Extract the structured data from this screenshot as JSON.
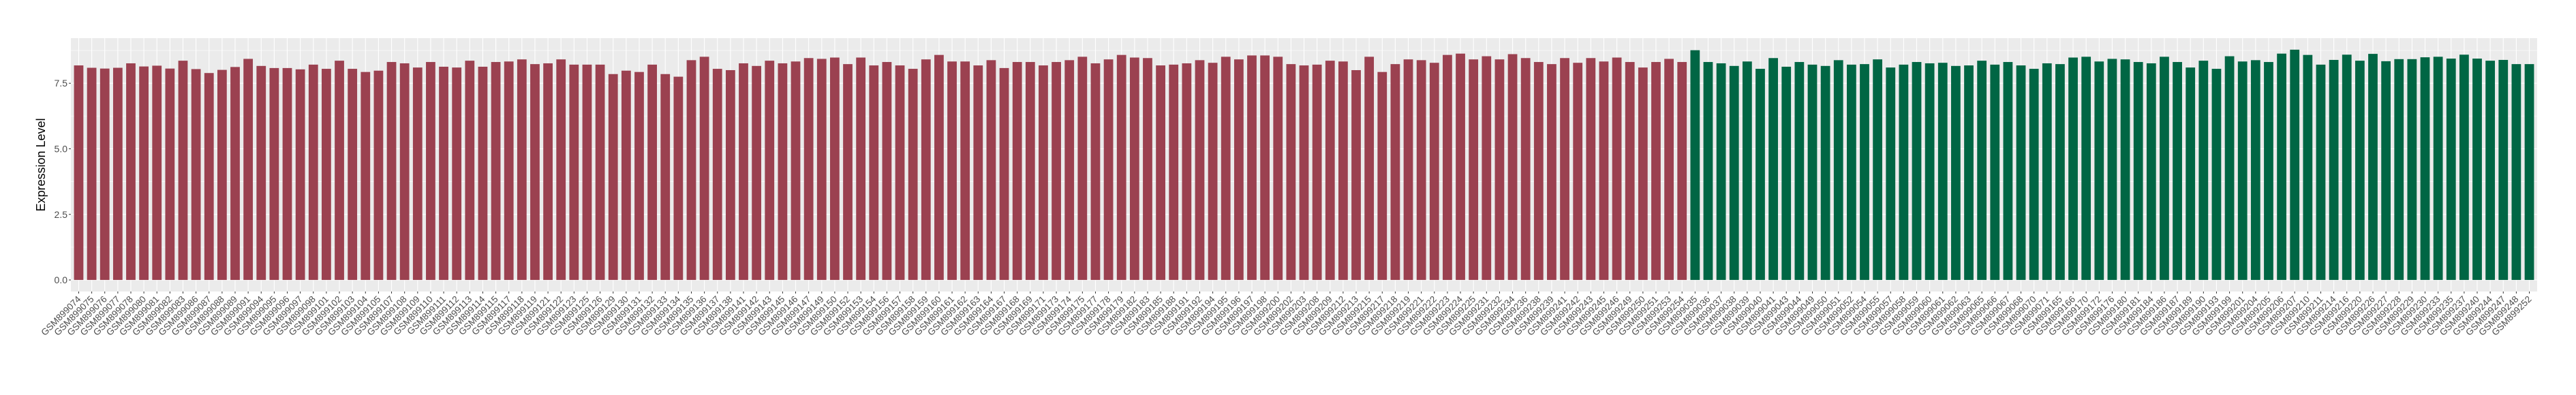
{
  "chart_data": {
    "type": "bar",
    "title": "",
    "xlabel": "",
    "ylabel": "Expression Level",
    "ylim": [
      -0.44,
      9.22
    ],
    "yticks": [
      "0.0",
      "2.5",
      "5.0",
      "7.5"
    ],
    "ytick_values": [
      0,
      2.5,
      5,
      7.5
    ],
    "grid": true,
    "legend": "none",
    "background_color": "#EBEBEB",
    "series": [
      {
        "color": "#9B4150",
        "categories": [
          "GSM899074",
          "GSM899075",
          "GSM899076",
          "GSM899077",
          "GSM899078",
          "GSM899080",
          "GSM899081",
          "GSM899082",
          "GSM899083",
          "GSM899086",
          "GSM899087",
          "GSM899088",
          "GSM899089",
          "GSM899091",
          "GSM899094",
          "GSM899095",
          "GSM899096",
          "GSM899097",
          "GSM899098",
          "GSM899101",
          "GSM899102",
          "GSM899103",
          "GSM899104",
          "GSM899105",
          "GSM899107",
          "GSM899108",
          "GSM899109",
          "GSM899110",
          "GSM899111",
          "GSM899112",
          "GSM899113",
          "GSM899114",
          "GSM899115",
          "GSM899117",
          "GSM899118",
          "GSM899119",
          "GSM899121",
          "GSM899122",
          "GSM899123",
          "GSM899125",
          "GSM899126",
          "GSM899129",
          "GSM899130",
          "GSM899131",
          "GSM899132",
          "GSM899133",
          "GSM899134",
          "GSM899135",
          "GSM899136",
          "GSM899137",
          "GSM899138",
          "GSM899141",
          "GSM899142",
          "GSM899143",
          "GSM899145",
          "GSM899146",
          "GSM899147",
          "GSM899149",
          "GSM899150",
          "GSM899152",
          "GSM899153",
          "GSM899154",
          "GSM899156",
          "GSM899157",
          "GSM899158",
          "GSM899159",
          "GSM899160",
          "GSM899161",
          "GSM899162",
          "GSM899163",
          "GSM899164",
          "GSM899167",
          "GSM899168",
          "GSM899169",
          "GSM899171",
          "GSM899173",
          "GSM899174",
          "GSM899175",
          "GSM899177",
          "GSM899178",
          "GSM899179",
          "GSM899182",
          "GSM899183",
          "GSM899185",
          "GSM899188",
          "GSM899191",
          "GSM899192",
          "GSM899194",
          "GSM899195",
          "GSM899196",
          "GSM899197",
          "GSM899198",
          "GSM899200",
          "GSM899202",
          "GSM899203",
          "GSM899208",
          "GSM899209",
          "GSM899212",
          "GSM899213",
          "GSM899215",
          "GSM899217",
          "GSM899218",
          "GSM899219",
          "GSM899221",
          "GSM899222",
          "GSM899223",
          "GSM899224",
          "GSM899225",
          "GSM899231",
          "GSM899232",
          "GSM899234",
          "GSM899236",
          "GSM899238",
          "GSM899239",
          "GSM899241",
          "GSM899242",
          "GSM899243",
          "GSM899245",
          "GSM899246",
          "GSM899249",
          "GSM899250",
          "GSM899251",
          "GSM899253",
          "GSM899254"
        ],
        "values": [
          8.18,
          8.09,
          8.06,
          8.09,
          8.26,
          8.14,
          8.17,
          8.06,
          8.36,
          8.04,
          7.89,
          8.01,
          8.12,
          8.43,
          8.16,
          8.08,
          8.08,
          8.03,
          8.21,
          8.05,
          8.36,
          8.05,
          7.93,
          7.98,
          8.31,
          8.26,
          8.1,
          8.31,
          8.13,
          8.1,
          8.36,
          8.13,
          8.31,
          8.33,
          8.41,
          8.23,
          8.26,
          8.41,
          8.21,
          8.21,
          8.21,
          7.85,
          7.98,
          7.93,
          8.21,
          7.85,
          7.75,
          8.38,
          8.51,
          8.05,
          8.0,
          8.26,
          8.16,
          8.36,
          8.26,
          8.33,
          8.46,
          8.43,
          8.48,
          8.23,
          8.48,
          8.18,
          8.31,
          8.18,
          8.05,
          8.41,
          8.58,
          8.33,
          8.33,
          8.18,
          8.38,
          8.08,
          8.31,
          8.31,
          8.18,
          8.31,
          8.38,
          8.51,
          8.26,
          8.41,
          8.58,
          8.48,
          8.46,
          8.18,
          8.21,
          8.26,
          8.38,
          8.28,
          8.51,
          8.41,
          8.56,
          8.56,
          8.51,
          8.23,
          8.18,
          8.21,
          8.36,
          8.33,
          8.0,
          8.51,
          7.93,
          8.23,
          8.41,
          8.38,
          8.28,
          8.58,
          8.63,
          8.41,
          8.53,
          8.41,
          8.61,
          8.46,
          8.31,
          8.23,
          8.46,
          8.28,
          8.46,
          8.33,
          8.48,
          8.31,
          8.1,
          8.31,
          8.43,
          8.31
        ]
      },
      {
        "color": "#006644",
        "categories": [
          "GSM899035",
          "GSM899036",
          "GSM899037",
          "GSM899038",
          "GSM899039",
          "GSM899040",
          "GSM899041",
          "GSM899043",
          "GSM899044",
          "GSM899049",
          "GSM899050",
          "GSM899051",
          "GSM899052",
          "GSM899054",
          "GSM899055",
          "GSM899057",
          "GSM899058",
          "GSM899059",
          "GSM899060",
          "GSM899061",
          "GSM899062",
          "GSM899063",
          "GSM899065",
          "GSM899066",
          "GSM899067",
          "GSM899068",
          "GSM899070",
          "GSM899071",
          "GSM899165",
          "GSM899166",
          "GSM899170",
          "GSM899172",
          "GSM899176",
          "GSM899180",
          "GSM899181",
          "GSM899184",
          "GSM899186",
          "GSM899187",
          "GSM899189",
          "GSM899190",
          "GSM899193",
          "GSM899199",
          "GSM899201",
          "GSM899204",
          "GSM899205",
          "GSM899206",
          "GSM899207",
          "GSM899210",
          "GSM899211",
          "GSM899214",
          "GSM899216",
          "GSM899220",
          "GSM899226",
          "GSM899227",
          "GSM899228",
          "GSM899229",
          "GSM899230",
          "GSM899233",
          "GSM899235",
          "GSM899237",
          "GSM899240",
          "GSM899244",
          "GSM899247",
          "GSM899248",
          "GSM899252"
        ],
        "values": [
          8.76,
          8.31,
          8.26,
          8.16,
          8.33,
          8.05,
          8.46,
          8.13,
          8.31,
          8.21,
          8.16,
          8.38,
          8.21,
          8.23,
          8.41,
          8.1,
          8.21,
          8.31,
          8.26,
          8.28,
          8.16,
          8.18,
          8.36,
          8.21,
          8.31,
          8.18,
          8.05,
          8.26,
          8.23,
          8.48,
          8.51,
          8.33,
          8.43,
          8.41,
          8.31,
          8.26,
          8.51,
          8.31,
          8.1,
          8.36,
          8.05,
          8.53,
          8.33,
          8.38,
          8.31,
          8.63,
          8.78,
          8.58,
          8.21,
          8.39,
          8.59,
          8.36,
          8.62,
          8.34,
          8.42,
          8.42,
          8.49,
          8.51,
          8.44,
          8.59,
          8.44,
          8.36,
          8.39,
          8.23,
          8.23
        ]
      }
    ]
  }
}
